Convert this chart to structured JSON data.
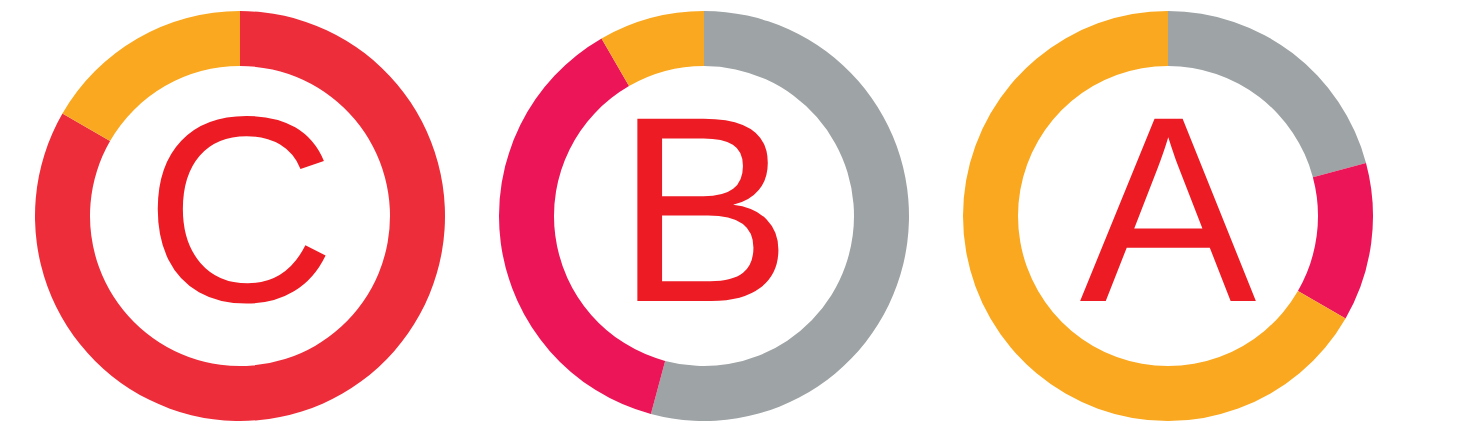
{
  "chart_data": [
    {
      "type": "donut",
      "title": "C",
      "categories": [
        null,
        null
      ],
      "values": [
        83.33,
        16.67
      ],
      "colors": [
        "#ee2d3a",
        "#f9a81f"
      ]
    },
    {
      "type": "donut",
      "title": "B",
      "categories": [
        null,
        null,
        null
      ],
      "values": [
        54.17,
        37.5,
        8.33
      ],
      "colors": [
        "#9ea3a5",
        "#ec1557",
        "#f9a81f"
      ]
    },
    {
      "type": "donut",
      "title": "A",
      "categories": [
        null,
        null,
        null
      ],
      "values": [
        20.83,
        12.5,
        66.67
      ],
      "colors": [
        "#9ea3a5",
        "#ec1557",
        "#f9a81f"
      ]
    }
  ]
}
